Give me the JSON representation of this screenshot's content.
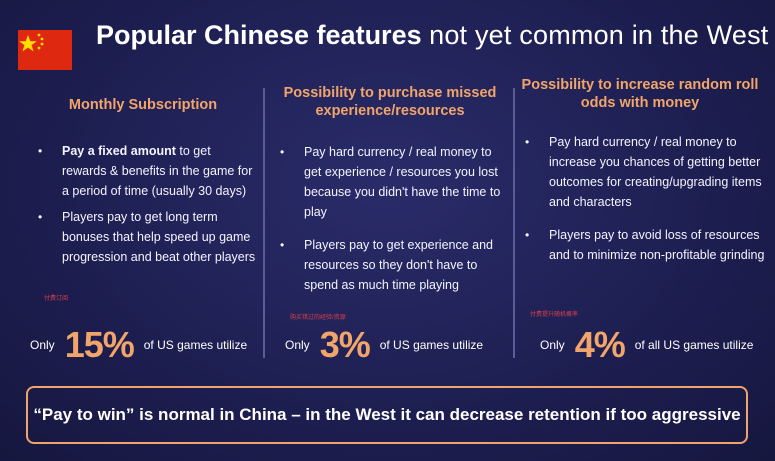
{
  "colors": {
    "background": "#1e1f52",
    "accent": "#f2a56a",
    "flag_red": "#de2910",
    "flag_star": "#ffde00"
  },
  "icons": {
    "flag": "china-flag-icon"
  },
  "title": {
    "bold": "Popular Chinese features",
    "light": "not yet common in the West"
  },
  "columns": [
    {
      "heading": "Monthly Subscription",
      "bullets": [
        {
          "strong": "Pay a fixed amount",
          "text": " to get rewards & benefits in the game for a period of time (usually 30 days)"
        },
        {
          "strong": "",
          "text": "Players pay to get long term bonuses that help speed up game progression and beat other players"
        }
      ],
      "note": "付费订阅",
      "stat": {
        "prefix": "Only",
        "value": "15%",
        "suffix": "of US games utilize"
      }
    },
    {
      "heading": "Possibility to purchase missed experience/resources",
      "bullets": [
        {
          "strong": "",
          "text": "Pay hard currency / real money to get experience / resources you lost because you didn't have the time to play"
        },
        {
          "strong": "",
          "text": "Players pay to get experience and resources so they don't have to spend as much time playing"
        }
      ],
      "note": "购买错过的经验/资源",
      "stat": {
        "prefix": "Only",
        "value": "3%",
        "suffix": "of US games utilize"
      }
    },
    {
      "heading": "Possibility to increase random roll odds with money",
      "bullets": [
        {
          "strong": "",
          "text": "Pay hard currency / real money to increase you chances of getting better outcomes for creating/upgrading items and characters"
        },
        {
          "strong": "",
          "text": "Players pay to avoid loss of resources and to minimize non-profitable grinding"
        }
      ],
      "note": "付费提升随机概率",
      "stat": {
        "prefix": "Only",
        "value": "4%",
        "suffix": "of all US games utilize"
      }
    }
  ],
  "banner": "“Pay to win” is normal in China – in the West it can decrease retention if too aggressive"
}
